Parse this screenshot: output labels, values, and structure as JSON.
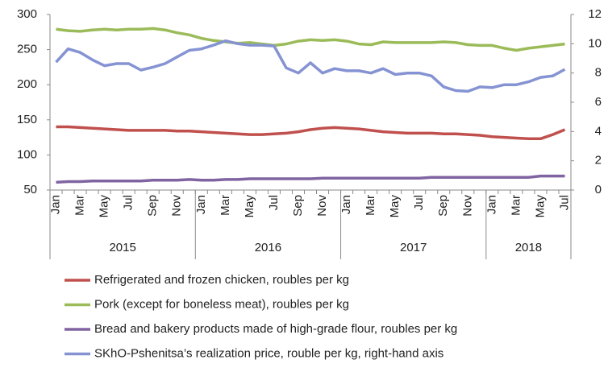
{
  "chart_data": {
    "type": "line",
    "categories": [
      "Jan",
      null,
      "Mar",
      null,
      "May",
      null,
      "Jul",
      null,
      "Sep",
      null,
      "Nov",
      null,
      "Jan",
      null,
      "Mar",
      null,
      "May",
      null,
      "Jul",
      null,
      "Sep",
      null,
      "Nov",
      null,
      "Jan",
      null,
      "Mar",
      null,
      "May",
      null,
      "Jul",
      null,
      "Sep",
      null,
      "Nov",
      null,
      "Jan",
      null,
      "Mar",
      null,
      "May",
      null,
      "Jul"
    ],
    "year_labels": [
      "2015",
      "2016",
      "2017",
      "2018"
    ],
    "ylim": [
      50,
      300
    ],
    "yticks": [
      50,
      100,
      150,
      200,
      250,
      300
    ],
    "y2lim": [
      0,
      12
    ],
    "y2ticks": [
      0,
      2,
      4,
      6,
      8,
      10,
      12
    ],
    "series": [
      {
        "name": "Refrigerated and frozen chicken, roubles per kg",
        "color": "#c0504d",
        "values": [
          140,
          140,
          139,
          138,
          137,
          136,
          135,
          135,
          135,
          135,
          134,
          134,
          133,
          132,
          131,
          130,
          129,
          129,
          130,
          131,
          133,
          136,
          138,
          139,
          138,
          137,
          135,
          133,
          132,
          131,
          131,
          131,
          130,
          130,
          129,
          128,
          126,
          125,
          124,
          123,
          123,
          129,
          136
        ]
      },
      {
        "name": "Pork (except for boneless meat), roubles per kg",
        "color": "#9bbb59",
        "values": [
          279,
          277,
          276,
          278,
          279,
          278,
          279,
          279,
          280,
          278,
          274,
          271,
          266,
          263,
          261,
          259,
          260,
          258,
          256,
          258,
          262,
          264,
          263,
          264,
          262,
          258,
          257,
          261,
          260,
          260,
          260,
          260,
          261,
          260,
          257,
          256,
          256,
          252,
          249,
          252,
          254,
          256,
          258
        ]
      },
      {
        "name": "Bread and bakery products made of high-grade flour, roubles per kg",
        "color": "#8064a2",
        "values": [
          61,
          62,
          62,
          63,
          63,
          63,
          63,
          63,
          64,
          64,
          64,
          65,
          64,
          64,
          65,
          65,
          66,
          66,
          66,
          66,
          66,
          66,
          67,
          67,
          67,
          67,
          67,
          67,
          67,
          67,
          67,
          68,
          68,
          68,
          68,
          68,
          68,
          68,
          68,
          68,
          70,
          70,
          70
        ]
      },
      {
        "name": "SKhO-Pshenitsa’s realization price, rouble per kg, right-hand axis",
        "color": "#8593d2",
        "axis": "y2",
        "values": [
          8.74,
          9.65,
          9.4,
          8.9,
          8.5,
          8.64,
          8.64,
          8.2,
          8.4,
          8.64,
          9.1,
          9.55,
          9.65,
          9.9,
          10.2,
          10.0,
          9.9,
          9.9,
          9.85,
          8.35,
          8.0,
          8.7,
          8.0,
          8.3,
          8.15,
          8.15,
          8.0,
          8.3,
          7.9,
          8.0,
          8.0,
          7.8,
          7.05,
          6.8,
          6.75,
          7.05,
          7.0,
          7.2,
          7.2,
          7.4,
          7.7,
          7.8,
          8.25
        ]
      }
    ]
  }
}
